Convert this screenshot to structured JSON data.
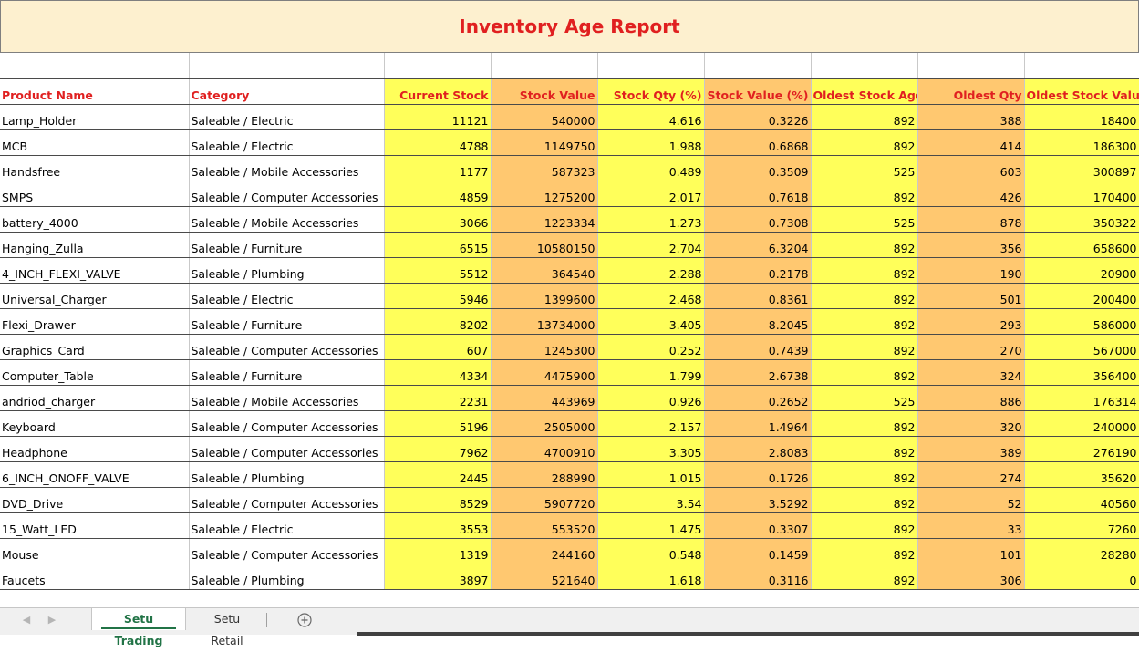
{
  "report": {
    "title": "Inventory Age Report"
  },
  "columns": [
    "Product Name",
    "Category",
    "Current Stock",
    "Stock Value",
    "Stock Qty (%)",
    "Stock Value (%)",
    "Oldest Stock Age",
    "Oldest Qty",
    "Oldest Stock Value"
  ],
  "rows": [
    [
      "Lamp_Holder",
      "Saleable / Electric",
      "11121",
      "540000",
      "4.616",
      "0.3226",
      "892",
      "388",
      "18400"
    ],
    [
      "MCB",
      "Saleable / Electric",
      "4788",
      "1149750",
      "1.988",
      "0.6868",
      "892",
      "414",
      "186300"
    ],
    [
      "Handsfree",
      "Saleable / Mobile Accessories",
      "1177",
      "587323",
      "0.489",
      "0.3509",
      "525",
      "603",
      "300897"
    ],
    [
      "SMPS",
      "Saleable / Computer Accessories",
      "4859",
      "1275200",
      "2.017",
      "0.7618",
      "892",
      "426",
      "170400"
    ],
    [
      "battery_4000",
      "Saleable / Mobile Accessories",
      "3066",
      "1223334",
      "1.273",
      "0.7308",
      "525",
      "878",
      "350322"
    ],
    [
      "Hanging_Zulla",
      "Saleable / Furniture",
      "6515",
      "10580150",
      "2.704",
      "6.3204",
      "892",
      "356",
      "658600"
    ],
    [
      "4_INCH_FLEXI_VALVE",
      "Saleable / Plumbing",
      "5512",
      "364540",
      "2.288",
      "0.2178",
      "892",
      "190",
      "20900"
    ],
    [
      "Universal_Charger",
      "Saleable / Electric",
      "5946",
      "1399600",
      "2.468",
      "0.8361",
      "892",
      "501",
      "200400"
    ],
    [
      "Flexi_Drawer",
      "Saleable / Furniture",
      "8202",
      "13734000",
      "3.405",
      "8.2045",
      "892",
      "293",
      "586000"
    ],
    [
      "Graphics_Card",
      "Saleable / Computer Accessories",
      "607",
      "1245300",
      "0.252",
      "0.7439",
      "892",
      "270",
      "567000"
    ],
    [
      "Computer_Table",
      "Saleable / Furniture",
      "4334",
      "4475900",
      "1.799",
      "2.6738",
      "892",
      "324",
      "356400"
    ],
    [
      "andriod_charger",
      "Saleable / Mobile Accessories",
      "2231",
      "443969",
      "0.926",
      "0.2652",
      "525",
      "886",
      "176314"
    ],
    [
      "Keyboard",
      "Saleable / Computer Accessories",
      "5196",
      "2505000",
      "2.157",
      "1.4964",
      "892",
      "320",
      "240000"
    ],
    [
      "Headphone",
      "Saleable / Computer Accessories",
      "7962",
      "4700910",
      "3.305",
      "2.8083",
      "892",
      "389",
      "276190"
    ],
    [
      "6_INCH_ONOFF_VALVE",
      "Saleable / Plumbing",
      "2445",
      "288990",
      "1.015",
      "0.1726",
      "892",
      "274",
      "35620"
    ],
    [
      "DVD_Drive",
      "Saleable / Computer Accessories",
      "8529",
      "5907720",
      "3.54",
      "3.5292",
      "892",
      "52",
      "40560"
    ],
    [
      "15_Watt_LED",
      "Saleable / Electric",
      "3553",
      "553520",
      "1.475",
      "0.3307",
      "892",
      "33",
      "7260"
    ],
    [
      "Mouse",
      "Saleable / Computer Accessories",
      "1319",
      "244160",
      "0.548",
      "0.1459",
      "892",
      "101",
      "28280"
    ],
    [
      "Faucets",
      "Saleable / Plumbing",
      "3897",
      "521640",
      "1.618",
      "0.3116",
      "892",
      "306",
      "0"
    ]
  ],
  "column_fills": [
    "none",
    "none",
    "yellow",
    "orange",
    "yellow",
    "orange",
    "yellow",
    "orange",
    "yellow"
  ],
  "colors": {
    "header_text": "#e02020",
    "title_bg": "#fdf0cf",
    "yellow": "#ffff5a",
    "orange": "#ffc870",
    "active_tab": "#217346"
  },
  "tabs": {
    "active": "Setu Trading",
    "inactive": "Setu Retail",
    "add_icon": "plus-circle-icon",
    "nav_icons": [
      "chevron-left-icon",
      "chevron-right-icon"
    ]
  }
}
